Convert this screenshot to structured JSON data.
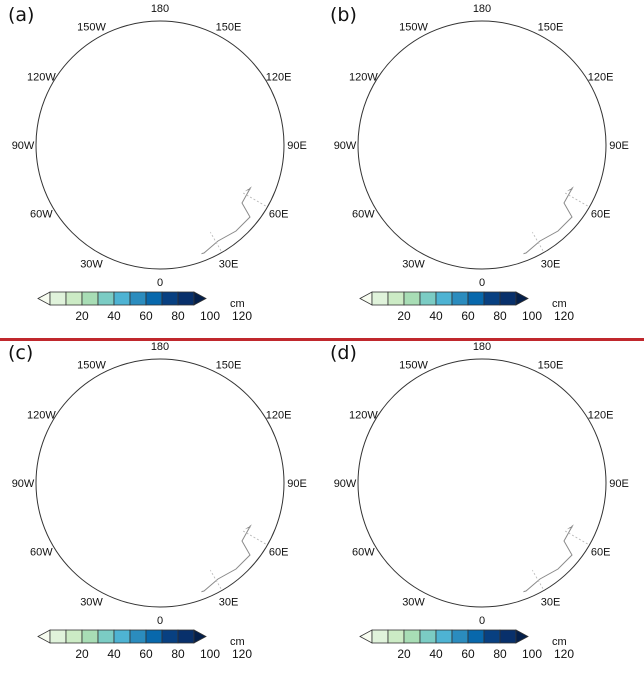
{
  "panels": [
    {
      "label": "(a)",
      "field": "large"
    },
    {
      "label": "(b)",
      "field": "medium"
    },
    {
      "label": "(c)",
      "field": "small"
    },
    {
      "label": "(d)",
      "field": "faint"
    }
  ],
  "longitude_labels": [
    "180",
    "150E",
    "120E",
    "90E",
    "60E",
    "30E",
    "0",
    "30W",
    "60W",
    "90W",
    "120W",
    "150W"
  ],
  "colorbar": {
    "unit": "cm",
    "tick_labels": [
      "20",
      "40",
      "60",
      "80",
      "100",
      "120"
    ],
    "colors": [
      "#f7fcf0",
      "#e0f3db",
      "#ccebc5",
      "#a8ddb5",
      "#7bccc4",
      "#4eb3d3",
      "#2b8cbe",
      "#0868ac",
      "#084081",
      "#08306b",
      "#041f4a"
    ]
  },
  "colors": {
    "divider": "#c0282d",
    "coast": "#8a8a8a",
    "grid": "#b5b5b5"
  }
}
